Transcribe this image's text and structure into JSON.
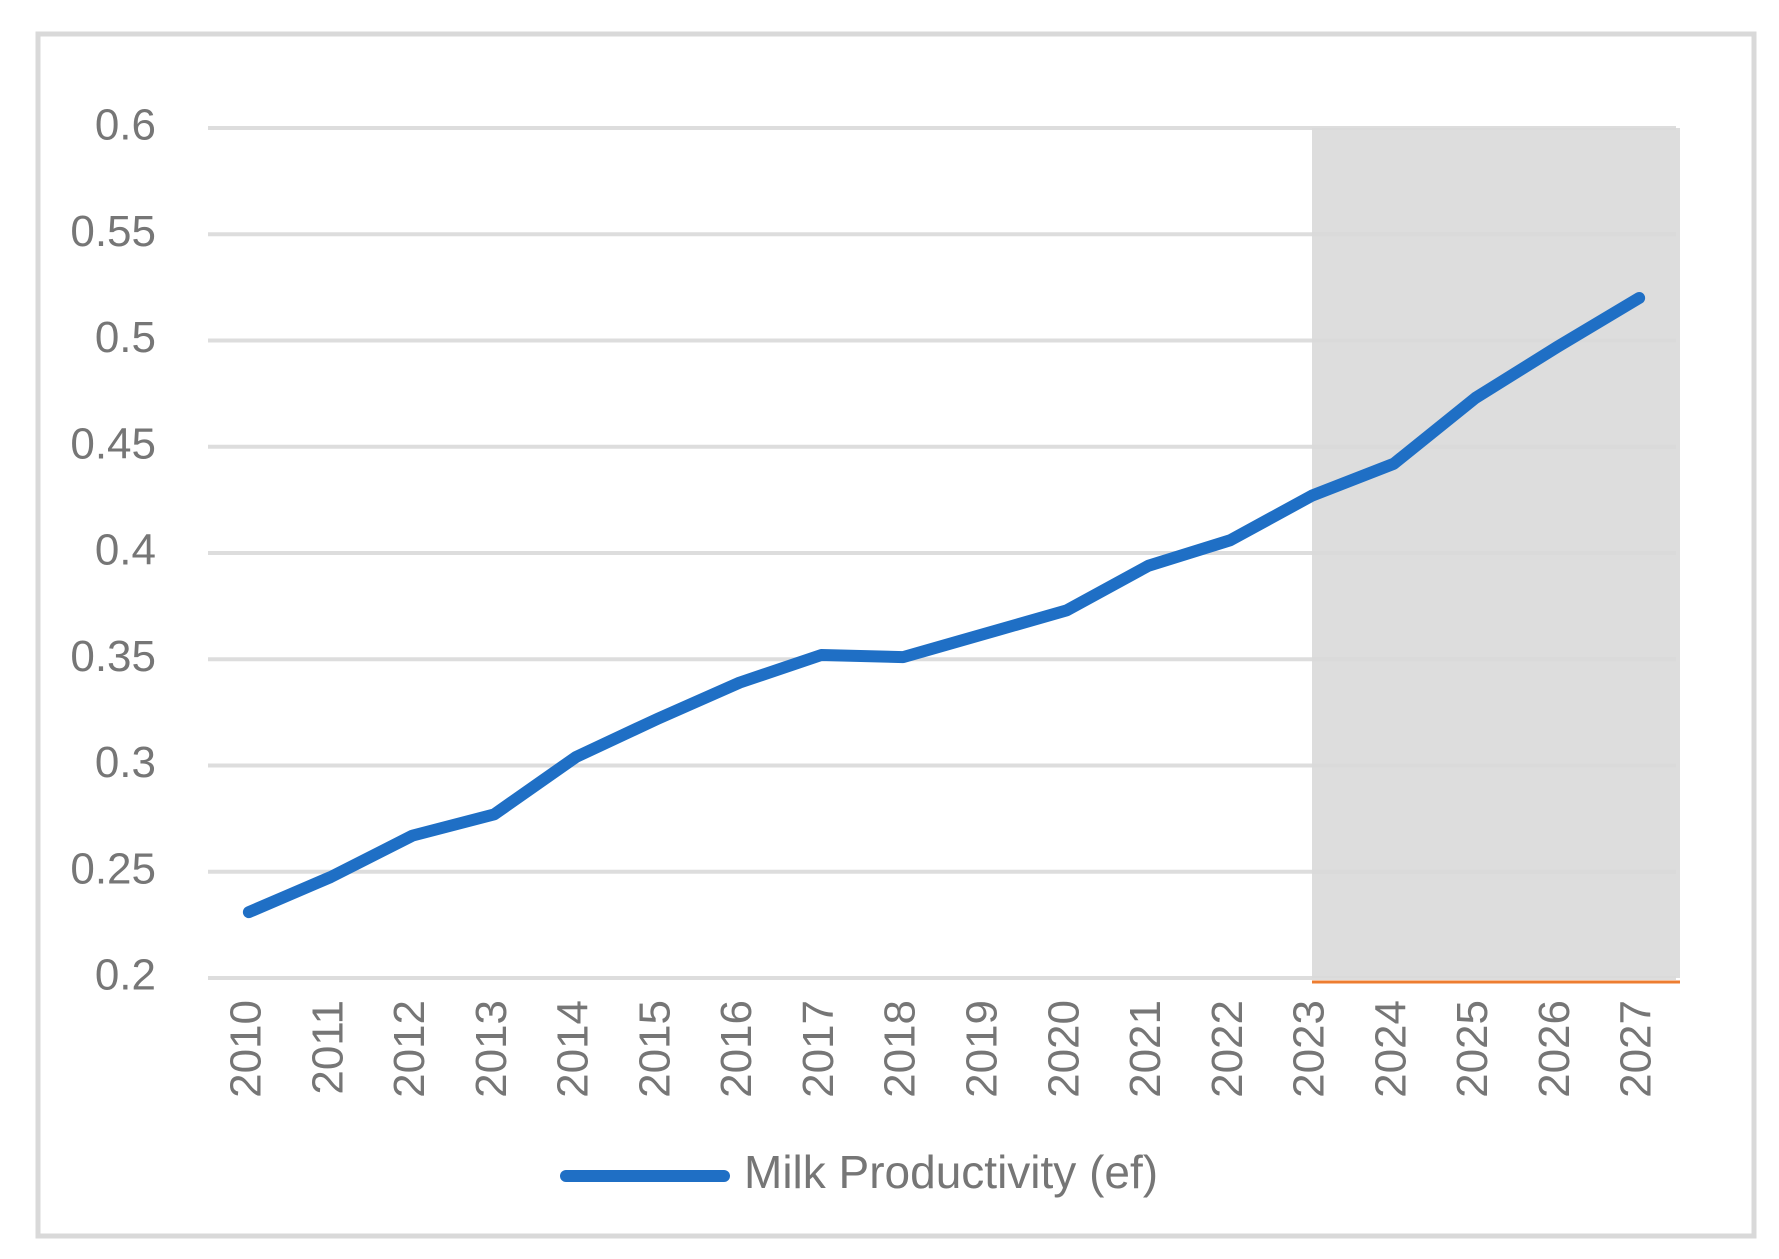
{
  "chart_data": {
    "type": "line",
    "categories": [
      "2010",
      "2011",
      "2012",
      "2013",
      "2014",
      "2015",
      "2016",
      "2017",
      "2018",
      "2019",
      "2020",
      "2021",
      "2022",
      "2023",
      "2024",
      "2025",
      "2026",
      "2027"
    ],
    "series": [
      {
        "name": "Milk Productivity (ef)",
        "color": "#1f6fc5",
        "values": [
          0.231,
          0.2475,
          0.267,
          0.277,
          0.304,
          0.322,
          0.339,
          0.352,
          0.351,
          0.362,
          0.373,
          0.394,
          0.406,
          0.427,
          0.442,
          0.473,
          0.497,
          0.52
        ]
      }
    ],
    "ylim": [
      0.2,
      0.6
    ],
    "yticks": [
      0.2,
      0.25,
      0.3,
      0.35,
      0.4,
      0.45,
      0.5,
      0.55,
      0.6
    ],
    "grid": true,
    "legend": "bottom",
    "shaded_region": {
      "start": "2023",
      "color": "#dddddd",
      "edge_color": "#ed7d31"
    }
  }
}
